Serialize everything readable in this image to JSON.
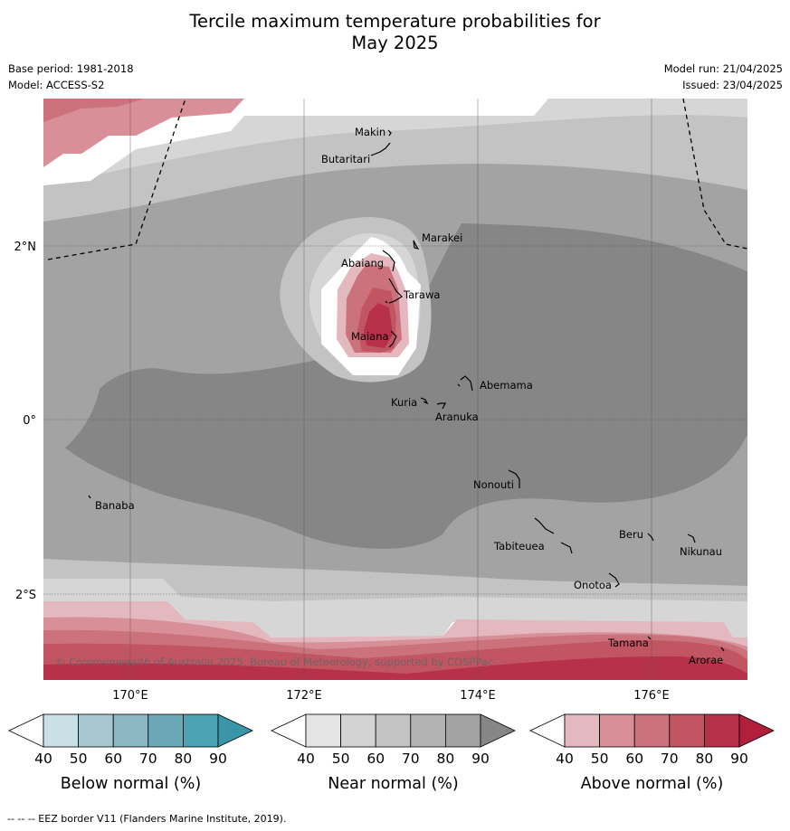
{
  "title_line1": "Tercile maximum temperature probabilities for",
  "title_line2": "May 2025",
  "meta": {
    "base_period": "Base period: 1981-2018",
    "model": "Model: ACCESS-S2",
    "model_run": "Model run: 21/04/2025",
    "issued": "Issued: 23/04/2025"
  },
  "map": {
    "lon_labels": [
      "170°E",
      "172°E",
      "174°E",
      "176°E"
    ],
    "lat_labels": [
      "2°N",
      "0°",
      "2°S"
    ],
    "places": [
      "Makin",
      "Butaritari",
      "Marakei",
      "Abaiang",
      "Tarawa",
      "Maiana",
      "Abemama",
      "Kuria",
      "Aranuka",
      "Banaba",
      "Nonouti",
      "Tabiteuea",
      "Beru",
      "Nikunau",
      "Onotoa",
      "Tamana",
      "Arorae"
    ],
    "copyright": "© Commonwealth of Australia 2025, Bureau of Meteorology, supported by COSPPac"
  },
  "colorbars": [
    {
      "label": "Below normal (%)",
      "ticks": [
        "40",
        "50",
        "60",
        "70",
        "80",
        "90"
      ],
      "colors": [
        "#ffffff",
        "#c8e0e6",
        "#a7c8cf",
        "#8bb7c3",
        "#6ba8b7",
        "#4aa2b2",
        "#3a95a8"
      ]
    },
    {
      "label": "Near normal (%)",
      "ticks": [
        "40",
        "50",
        "60",
        "70",
        "80",
        "90"
      ],
      "colors": [
        "#ffffff",
        "#e4e4e4",
        "#d3d3d3",
        "#c3c3c3",
        "#b3b3b3",
        "#a3a3a3",
        "#868686"
      ]
    },
    {
      "label": "Above normal (%)",
      "ticks": [
        "40",
        "50",
        "60",
        "70",
        "80",
        "90"
      ],
      "colors": [
        "#ffffff",
        "#e3b8be",
        "#d88f98",
        "#cb727d",
        "#c25562",
        "#b7314a",
        "#b21f3a"
      ]
    }
  ],
  "footnote": "--  --  -- EEZ border V11 (Flanders Marine Institute, 2019)."
}
